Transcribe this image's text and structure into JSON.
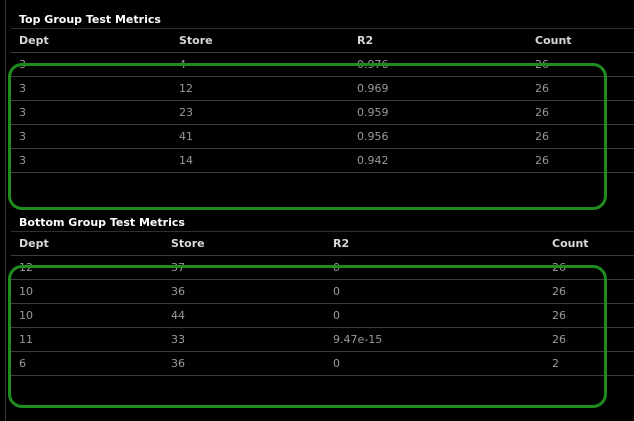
{
  "colors": {
    "background": "#000000",
    "header_text": "#d8d8d8",
    "cell_text": "#9a9a9a",
    "highlight": "#1f8c1f"
  },
  "top_table": {
    "title": "Top Group Test Metrics",
    "columns": [
      "Dept",
      "Store",
      "R2",
      "Count"
    ],
    "rows": [
      [
        "3",
        "4",
        "0.976",
        "26"
      ],
      [
        "3",
        "12",
        "0.969",
        "26"
      ],
      [
        "3",
        "23",
        "0.959",
        "26"
      ],
      [
        "3",
        "41",
        "0.956",
        "26"
      ],
      [
        "3",
        "14",
        "0.942",
        "26"
      ]
    ]
  },
  "bottom_table": {
    "title": "Bottom Group Test Metrics",
    "columns": [
      "Dept",
      "Store",
      "R2",
      "Count"
    ],
    "rows": [
      [
        "12",
        "37",
        "0",
        "26"
      ],
      [
        "10",
        "36",
        "0",
        "26"
      ],
      [
        "10",
        "44",
        "0",
        "26"
      ],
      [
        "11",
        "33",
        "9.47e-15",
        "26"
      ],
      [
        "6",
        "36",
        "0",
        "2"
      ]
    ]
  }
}
